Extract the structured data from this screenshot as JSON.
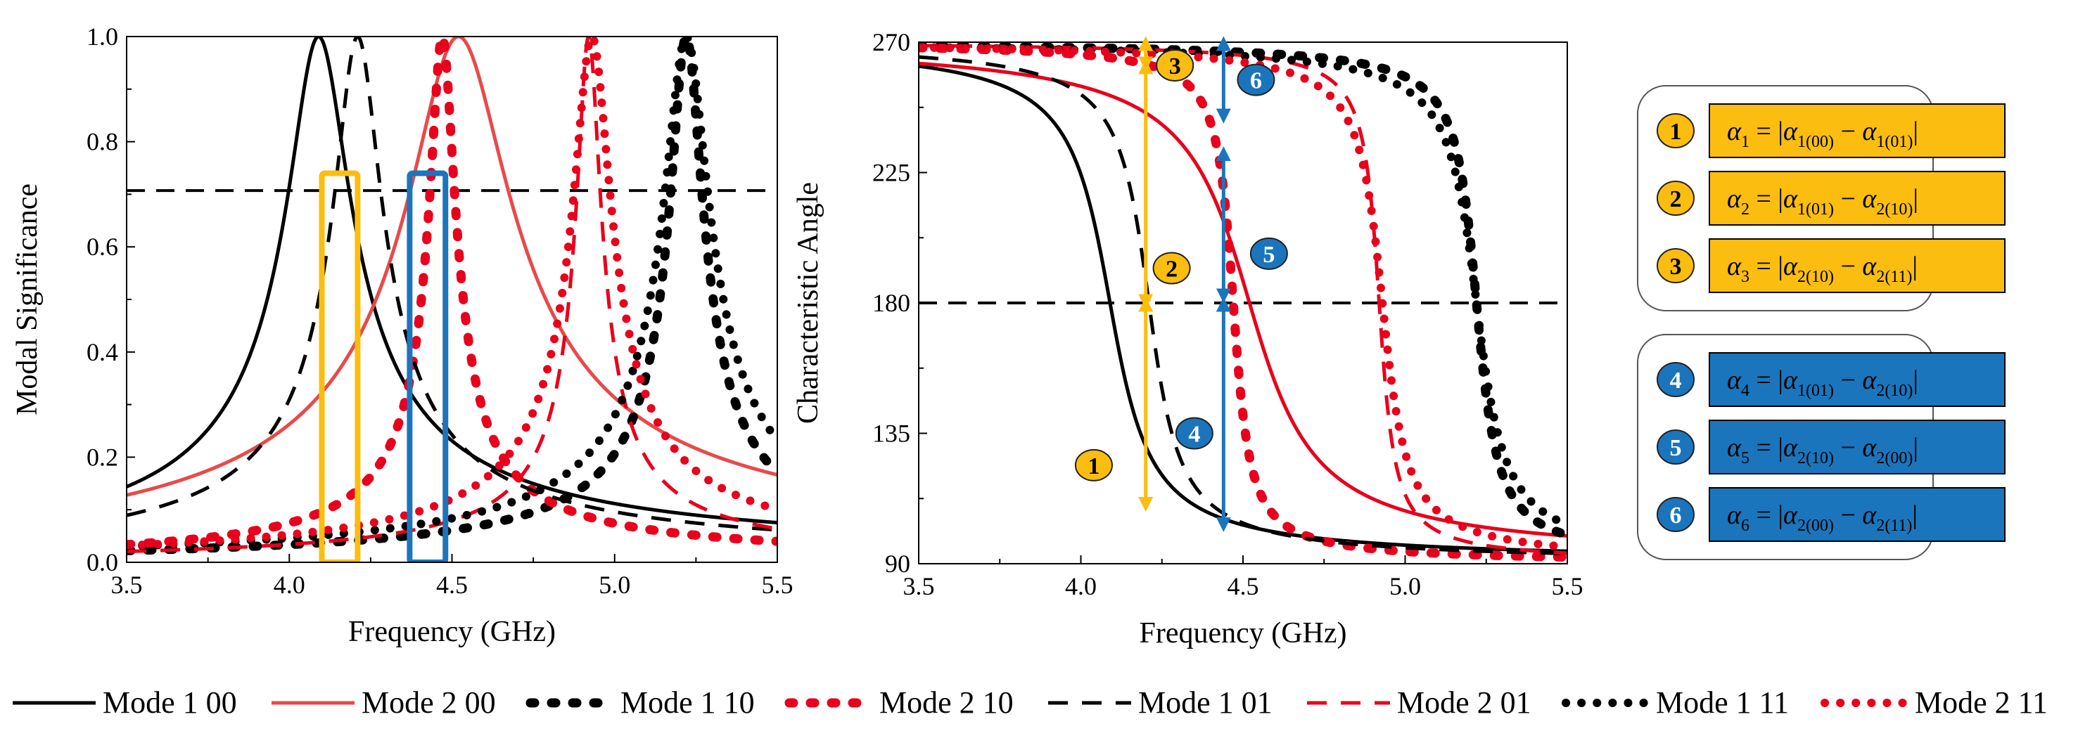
{
  "colors": {
    "black": "#000000",
    "red": "#e8001c",
    "lightred": "#e84a4a",
    "gold": "#fbbd0f",
    "blue": "#1b75bc",
    "goldbox": "#fbbd0f",
    "bluebox": "#1b75bc"
  },
  "chart_data": [
    {
      "id": "modal-significance",
      "type": "line",
      "title": "",
      "xlabel": "Frequency (GHz)",
      "ylabel": "Modal Significance",
      "xlim": [
        3.5,
        5.5
      ],
      "ylim": [
        0.0,
        1.0
      ],
      "xticks": [
        "3.5",
        "4.0",
        "4.5",
        "5.0",
        "5.5"
      ],
      "yticks": [
        "0.0",
        "0.2",
        "0.4",
        "0.6",
        "0.8",
        "1.0"
      ],
      "threshold": 0.707,
      "series": [
        {
          "name": "Mode 1 00",
          "kind": "resonance",
          "fr": 4.09,
          "q": 22,
          "style": "solid",
          "color": "black"
        },
        {
          "name": "Mode 2 00",
          "kind": "resonance",
          "fr": 4.52,
          "q": 15,
          "style": "solid",
          "color": "lightred"
        },
        {
          "name": "Mode 1 10",
          "kind": "resonance",
          "fr": 5.22,
          "q": 55,
          "style": "bigdash",
          "color": "black"
        },
        {
          "name": "Mode 2 10",
          "kind": "resonance",
          "fr": 4.47,
          "q": 60,
          "style": "bigdash",
          "color": "red"
        },
        {
          "name": "Mode 1 01",
          "kind": "resonance",
          "fr": 4.21,
          "q": 30,
          "style": "dash",
          "color": "black"
        },
        {
          "name": "Mode 2 01",
          "kind": "resonance",
          "fr": 4.92,
          "q": 70,
          "style": "dash",
          "color": "red"
        },
        {
          "name": "Mode 1 11",
          "kind": "resonance",
          "fr": 5.22,
          "q": 40,
          "style": "dot",
          "color": "black"
        },
        {
          "name": "Mode 2 11",
          "kind": "resonance",
          "fr": 4.93,
          "q": 45,
          "style": "dot",
          "color": "red"
        }
      ],
      "highlight_ranges": [
        {
          "name": "gold-band",
          "x": [
            4.1,
            4.21
          ],
          "y": [
            0.0,
            0.74
          ],
          "color": "gold"
        },
        {
          "name": "blue-band",
          "x": [
            4.37,
            4.48
          ],
          "y": [
            0.0,
            0.74
          ],
          "color": "blue"
        }
      ]
    },
    {
      "id": "characteristic-angle",
      "type": "line",
      "title": "",
      "xlabel": "Frequency (GHz)",
      "ylabel": "Characteristic Angle",
      "xlim": [
        3.5,
        5.5
      ],
      "ylim": [
        90,
        270
      ],
      "xticks": [
        "3.5",
        "4.0",
        "4.5",
        "5.0",
        "5.5"
      ],
      "yticks": [
        "90",
        "135",
        "180",
        "225",
        "270"
      ],
      "threshold": 180,
      "series": [
        {
          "name": "Mode 1 00",
          "kind": "angle",
          "fr": 4.09,
          "q": 22,
          "style": "solid",
          "color": "black"
        },
        {
          "name": "Mode 2 00",
          "kind": "angle",
          "fr": 4.52,
          "q": 15,
          "style": "solid",
          "color": "red"
        },
        {
          "name": "Mode 1 10",
          "kind": "angle",
          "fr": 5.22,
          "q": 55,
          "style": "bigdash",
          "color": "black"
        },
        {
          "name": "Mode 2 10",
          "kind": "angle",
          "fr": 4.47,
          "q": 60,
          "style": "bigdash",
          "color": "red"
        },
        {
          "name": "Mode 1 01",
          "kind": "angle",
          "fr": 4.21,
          "q": 30,
          "style": "dash",
          "color": "black"
        },
        {
          "name": "Mode 2 01",
          "kind": "angle",
          "fr": 4.92,
          "q": 70,
          "style": "dash",
          "color": "red"
        },
        {
          "name": "Mode 1 11",
          "kind": "angle",
          "fr": 5.22,
          "q": 40,
          "style": "dot",
          "color": "black"
        },
        {
          "name": "Mode 2 11",
          "kind": "angle",
          "fr": 4.93,
          "q": 45,
          "style": "dot",
          "color": "red"
        }
      ],
      "arrows": [
        {
          "n": "1",
          "x": 4.2,
          "y": [
            110,
            180
          ],
          "color": "gold",
          "label_x": 4.04,
          "label_y": 124
        },
        {
          "n": "2",
          "x": 4.2,
          "y": [
            180,
            262
          ],
          "color": "gold",
          "label_x": 4.28,
          "label_y": 192
        },
        {
          "n": "3",
          "x": 4.2,
          "y": [
            262,
            270
          ],
          "color": "gold",
          "label_x": 4.29,
          "label_y": 262
        },
        {
          "n": "4",
          "x": 4.44,
          "y": [
            103,
            180
          ],
          "color": "blue",
          "label_x": 4.35,
          "label_y": 135
        },
        {
          "n": "5",
          "x": 4.44,
          "y": [
            182,
            232
          ],
          "color": "blue",
          "label_x": 4.58,
          "label_y": 197
        },
        {
          "n": "6",
          "x": 4.44,
          "y": [
            244,
            270
          ],
          "color": "blue",
          "label_x": 4.54,
          "label_y": 257
        }
      ]
    }
  ],
  "equations_gold": [
    {
      "n": "1",
      "lhs": "α",
      "lsub": "1",
      "rhs": [
        "α",
        "1(00)",
        "α",
        "1(01)"
      ]
    },
    {
      "n": "2",
      "lhs": "α",
      "lsub": "2",
      "rhs": [
        "α",
        "1(01)",
        "α",
        "2(10)"
      ]
    },
    {
      "n": "3",
      "lhs": "α",
      "lsub": "3",
      "rhs": [
        "α",
        "2(10)",
        "α",
        "2(11)"
      ]
    }
  ],
  "equations_blue": [
    {
      "n": "4",
      "lhs": "α",
      "lsub": "4",
      "rhs": [
        "α",
        "1(01)",
        "α",
        "2(10)"
      ]
    },
    {
      "n": "5",
      "lhs": "α",
      "lsub": "5",
      "rhs": [
        "α",
        "2(10)",
        "α",
        "2(00)"
      ]
    },
    {
      "n": "6",
      "lhs": "α",
      "lsub": "6",
      "rhs": [
        "α",
        "2(00)",
        "α",
        "2(11)"
      ]
    }
  ],
  "legend": [
    {
      "label": "Mode 1 00",
      "style": "solid",
      "color": "black"
    },
    {
      "label": "Mode 2 00",
      "style": "solid",
      "color": "lightred"
    },
    {
      "label": "Mode 1 10",
      "style": "bigdash",
      "color": "black"
    },
    {
      "label": "Mode 2 10",
      "style": "bigdash",
      "color": "red"
    },
    {
      "label": "Mode 1 01",
      "style": "dash",
      "color": "black"
    },
    {
      "label": "Mode 2 01",
      "style": "dash",
      "color": "red"
    },
    {
      "label": "Mode 1 11",
      "style": "dot",
      "color": "black"
    },
    {
      "label": "Mode 2 11",
      "style": "dot",
      "color": "red"
    }
  ]
}
